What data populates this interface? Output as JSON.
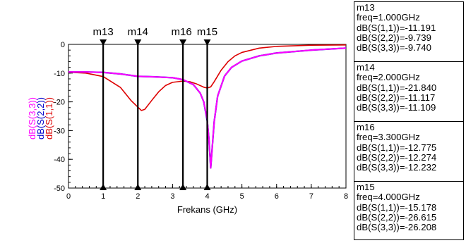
{
  "chart_data": {
    "type": "line",
    "xlabel": "Frekans (GHz)",
    "xlim": [
      0,
      8
    ],
    "ylim": [
      -50,
      0
    ],
    "xticks": [
      "0",
      "1",
      "2",
      "3",
      "4",
      "5",
      "6",
      "7",
      "8"
    ],
    "yticks": [
      "0",
      "-10",
      "-20",
      "-30",
      "-40",
      "-50"
    ],
    "ylabel_parts": [
      {
        "text": "dB(S(3,3))",
        "color": "#ff00ff"
      },
      {
        "text": "dB(S(2,2))",
        "color": "#0000cc"
      },
      {
        "text": "dB(S(1,1))",
        "color": "#dd0000"
      }
    ],
    "grid": false,
    "series": [
      {
        "name": "dB(S(1,1))",
        "color": "#dd0000",
        "points": [
          [
            0,
            -9.7
          ],
          [
            0.5,
            -10
          ],
          [
            1,
            -11.19
          ],
          [
            1.5,
            -15
          ],
          [
            1.8,
            -19.5
          ],
          [
            2,
            -21.84
          ],
          [
            2.1,
            -23
          ],
          [
            2.2,
            -22.6
          ],
          [
            2.4,
            -19.5
          ],
          [
            2.6,
            -16.5
          ],
          [
            2.8,
            -14.3
          ],
          [
            3,
            -13.2
          ],
          [
            3.3,
            -12.78
          ],
          [
            3.5,
            -13
          ],
          [
            3.7,
            -13.8
          ],
          [
            3.9,
            -14.9
          ],
          [
            4,
            -15.18
          ],
          [
            4.1,
            -14.8
          ],
          [
            4.2,
            -13
          ],
          [
            4.4,
            -9
          ],
          [
            4.6,
            -6
          ],
          [
            4.8,
            -4
          ],
          [
            5,
            -2.8
          ],
          [
            5.5,
            -1.3
          ],
          [
            6,
            -0.7
          ],
          [
            7,
            -0.3
          ],
          [
            8,
            -0.2
          ]
        ]
      },
      {
        "name": "dB(S(2,2))",
        "color": "#0000cc",
        "points": [
          [
            0,
            -9.6
          ],
          [
            0.5,
            -9.6
          ],
          [
            1,
            -9.74
          ],
          [
            1.5,
            -10.3
          ],
          [
            2,
            -11.12
          ],
          [
            2.5,
            -11.3
          ],
          [
            3,
            -11.6
          ],
          [
            3.3,
            -12.27
          ],
          [
            3.6,
            -14
          ],
          [
            3.8,
            -17
          ],
          [
            3.9,
            -20
          ],
          [
            4,
            -26.6
          ],
          [
            4.05,
            -33
          ],
          [
            4.1,
            -43
          ],
          [
            4.15,
            -35
          ],
          [
            4.2,
            -27
          ],
          [
            4.3,
            -18
          ],
          [
            4.5,
            -11
          ],
          [
            4.7,
            -8
          ],
          [
            5,
            -5.8
          ],
          [
            5.5,
            -4
          ],
          [
            6,
            -3
          ],
          [
            7,
            -2
          ],
          [
            8,
            -1.3
          ]
        ]
      },
      {
        "name": "dB(S(3,3))",
        "color": "#ff00ff",
        "points": [
          [
            0,
            -9.6
          ],
          [
            0.5,
            -9.6
          ],
          [
            1,
            -9.74
          ],
          [
            1.5,
            -10.3
          ],
          [
            2,
            -11.11
          ],
          [
            2.5,
            -11.3
          ],
          [
            3,
            -11.6
          ],
          [
            3.3,
            -12.23
          ],
          [
            3.6,
            -14
          ],
          [
            3.8,
            -17
          ],
          [
            3.9,
            -20
          ],
          [
            4,
            -26.2
          ],
          [
            4.05,
            -33
          ],
          [
            4.1,
            -43
          ],
          [
            4.15,
            -35
          ],
          [
            4.2,
            -27
          ],
          [
            4.3,
            -18
          ],
          [
            4.5,
            -11
          ],
          [
            4.7,
            -8
          ],
          [
            5,
            -5.8
          ],
          [
            5.5,
            -4
          ],
          [
            6,
            -3
          ],
          [
            7,
            -2
          ],
          [
            8,
            -1.3
          ]
        ]
      }
    ],
    "markers": [
      {
        "name": "m13",
        "x": 1.0,
        "lines": [
          "m13",
          "freq=1.000GHz",
          "dB(S(1,1))=-11.191",
          "dB(S(2,2))=-9.739",
          "dB(S(3,3))=-9.740"
        ]
      },
      {
        "name": "m14",
        "x": 2.0,
        "lines": [
          "m14",
          "freq=2.000GHz",
          "dB(S(1,1))=-21.840",
          "dB(S(2,2))=-11.117",
          "dB(S(3,3))=-11.109"
        ]
      },
      {
        "name": "m16",
        "x": 3.3,
        "lines": [
          "m16",
          "freq=3.300GHz",
          "dB(S(1,1))=-12.775",
          "dB(S(2,2))=-12.274",
          "dB(S(3,3))=-12.232"
        ]
      },
      {
        "name": "m15",
        "x": 4.0,
        "lines": [
          "m15",
          "freq=4.000GHz",
          "dB(S(1,1))=-15.178",
          "dB(S(2,2))=-26.615",
          "dB(S(3,3))=-26.208"
        ]
      }
    ]
  }
}
